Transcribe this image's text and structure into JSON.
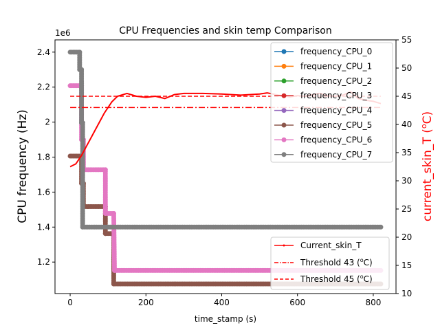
{
  "chart_data": {
    "type": "line",
    "title": "CPU Frequencies and skin temp Comparison",
    "xlabel": "time_stamp (s)",
    "ylabel_left": "CPU frequency (Hz)",
    "ylabel_right": "current_skin_T (°C)",
    "ylabel_right_main": "current_skin_T (",
    "ylabel_right_sup": "o",
    "ylabel_right_end": "C)",
    "left_offset_label": "1e6",
    "xlim": [
      -40,
      860
    ],
    "ylim_left": [
      1.02,
      2.47
    ],
    "ylim_right": [
      10,
      55
    ],
    "x_ticks": [
      0,
      200,
      400,
      600,
      800
    ],
    "y_ticks_left": [
      1.2,
      1.4,
      1.6,
      1.8,
      2.0,
      2.2,
      2.4
    ],
    "y_ticks_right": [
      10,
      15,
      20,
      25,
      30,
      35,
      40,
      45,
      50,
      55
    ],
    "frequency_legend": [
      "frequency_CPU_0",
      "frequency_CPU_1",
      "frequency_CPU_2",
      "frequency_CPU_3",
      "frequency_CPU_4",
      "frequency_CPU_5",
      "frequency_CPU_6",
      "frequency_CPU_7"
    ],
    "frequency_colors": [
      "#1f77b4",
      "#ff7f0e",
      "#2ca02c",
      "#d62728",
      "#9467bd",
      "#8c564b",
      "#e377c2",
      "#7f7f7f"
    ],
    "temp_legend": [
      {
        "label": "Current_skin_T",
        "style": "solid-dot"
      },
      {
        "label_main": "Threshold 43 (",
        "label_sup": "o",
        "label_end": "C)",
        "style": "dashdot"
      },
      {
        "label_main": "Threshold 45 (",
        "label_sup": "o",
        "label_end": "C)",
        "style": "dashed"
      }
    ],
    "temp_color": "#ff0000",
    "thresholds": [
      43,
      45
    ],
    "threshold_x": [
      0,
      820
    ],
    "freq_series": [
      {
        "color": "#8c564b",
        "points": [
          [
            0,
            1.806
          ],
          [
            30,
            1.806
          ],
          [
            30,
            1.65
          ],
          [
            35,
            1.65
          ],
          [
            35,
            1.517
          ],
          [
            93,
            1.517
          ],
          [
            93,
            1.363
          ],
          [
            115,
            1.363
          ],
          [
            115,
            1.075
          ],
          [
            820,
            1.075
          ]
        ]
      },
      {
        "color": "#e377c2",
        "points": [
          [
            0,
            2.208
          ],
          [
            30,
            2.208
          ],
          [
            30,
            2.09
          ],
          [
            30,
            1.9
          ],
          [
            35,
            1.9
          ],
          [
            35,
            1.728
          ],
          [
            93,
            1.728
          ],
          [
            93,
            1.478
          ],
          [
            115,
            1.478
          ],
          [
            117,
            1.152
          ],
          [
            820,
            1.152
          ]
        ]
      },
      {
        "color": "#7f7f7f",
        "points": [
          [
            0,
            2.4
          ],
          [
            25,
            2.4
          ],
          [
            25,
            2.3
          ],
          [
            30,
            2.3
          ],
          [
            30,
            2.19
          ],
          [
            30,
            1.996
          ],
          [
            33,
            1.996
          ],
          [
            33,
            1.4
          ],
          [
            820,
            1.4
          ]
        ]
      }
    ],
    "temp_series": {
      "x": [
        0,
        15,
        30,
        50,
        70,
        90,
        110,
        125,
        150,
        175,
        200,
        225,
        250,
        275,
        300,
        350,
        400,
        450,
        500,
        520,
        550,
        580,
        600,
        620,
        640,
        660,
        680,
        700,
        720,
        740,
        760,
        780,
        800,
        820
      ],
      "y": [
        32.5,
        33,
        34.5,
        37,
        39.5,
        42,
        44,
        45,
        45.5,
        45,
        44.8,
        45,
        44.6,
        45.3,
        45.5,
        45.5,
        45.4,
        45.2,
        45.4,
        45.6,
        45.2,
        44.9,
        45.1,
        45,
        45.3,
        45.5,
        45.1,
        45,
        45.2,
        45.8,
        44.6,
        44.3,
        44.1,
        43.7
      ]
    }
  }
}
